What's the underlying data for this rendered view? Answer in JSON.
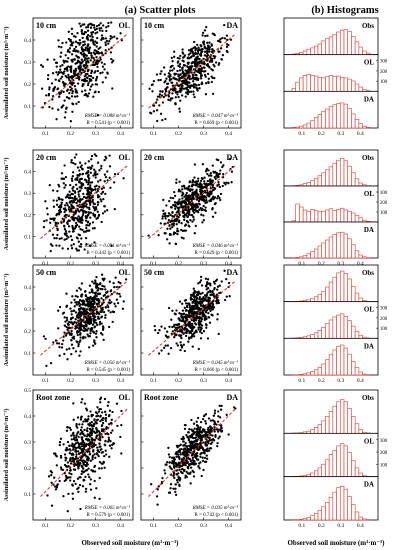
{
  "chart_data": {
    "type": "scatter",
    "sections": {
      "scatter_title": "(a) Scatter plots",
      "hist_title": "(b) Histograms"
    },
    "xlabel": "Observed soil moisture (m³·m⁻³)",
    "ylabel": "Assimilated soil moisture (m³·m⁻³)",
    "x_ticks": [
      "0.1",
      "0.2",
      "0.3",
      "0.4"
    ],
    "xlim": [
      0.05,
      0.45
    ],
    "ylim": [
      0.0,
      0.5
    ],
    "scatter_y_ticks": [
      "0.1",
      "0.2",
      "0.3",
      "0.4"
    ],
    "scatter_y_ticks_bottom": [
      "0.1",
      "0.2",
      "0.3",
      "0.4",
      "0.5"
    ],
    "hist_y_ticks": [
      "100",
      "200",
      "300"
    ],
    "hist_x_ticks": [
      "0.1",
      "0.2",
      "0.3",
      "0.4"
    ],
    "hist_labels": [
      "Obs",
      "OL",
      "DA"
    ],
    "colors": {
      "points": "#000000",
      "fit_line": "#e0362c",
      "bars": "#e0362c"
    },
    "rows": [
      {
        "depth": "10 cm",
        "panels": [
          {
            "model": "OL",
            "rmse": "RMSE = 0.088 m³·m⁻³",
            "r": "R = 0.541 (p < 0.001)",
            "center": [
              0.25,
              0.3
            ],
            "spread": [
              0.065,
              0.1
            ],
            "slope": 0.9
          },
          {
            "model": "DA",
            "rmse": "RMSE = 0.047 m³·m⁻³",
            "r": "R = 0.669 (p < 0.001)",
            "center": [
              0.25,
              0.26
            ],
            "spread": [
              0.065,
              0.06
            ],
            "slope": 1.0
          }
        ],
        "hist": {
          "Obs": [
            2,
            4,
            8,
            12,
            18,
            22,
            28,
            35,
            45,
            52,
            58,
            66,
            74,
            80,
            82,
            76,
            60,
            42,
            25,
            12,
            5
          ],
          "OL": [
            10,
            30,
            44,
            52,
            56,
            52,
            50,
            46,
            44,
            48,
            52,
            48,
            50,
            46,
            44,
            40,
            34,
            24,
            14,
            6,
            2
          ],
          "DA": [
            2,
            3,
            6,
            10,
            16,
            24,
            34,
            44,
            54,
            62,
            70,
            76,
            80,
            82,
            78,
            64,
            46,
            28,
            14,
            6,
            2
          ]
        }
      },
      {
        "depth": "20 cm",
        "panels": [
          {
            "model": "OL",
            "rmse": "RMSE = 0.091 m³·m⁻³",
            "r": "R = 0.442 (p < 0.001)",
            "center": [
              0.24,
              0.26
            ],
            "spread": [
              0.06,
              0.1
            ],
            "slope": 0.8
          },
          {
            "model": "DA",
            "rmse": "RMSE = 0.046 m³·m⁻³",
            "r": "R = 0.629 (p < 0.001)",
            "center": [
              0.26,
              0.27
            ],
            "spread": [
              0.06,
              0.055
            ],
            "slope": 1.0
          }
        ],
        "hist": {
          "Obs": [
            1,
            2,
            4,
            8,
            12,
            18,
            26,
            34,
            44,
            54,
            64,
            76,
            86,
            92,
            84,
            66,
            44,
            24,
            10,
            4,
            1
          ],
          "OL": [
            4,
            60,
            50,
            40,
            36,
            42,
            38,
            34,
            36,
            40,
            44,
            38,
            42,
            46,
            40,
            36,
            30,
            22,
            14,
            6,
            2
          ],
          "DA": [
            1,
            2,
            4,
            8,
            14,
            22,
            30,
            40,
            50,
            60,
            70,
            78,
            84,
            86,
            80,
            64,
            44,
            24,
            10,
            4,
            1
          ]
        }
      },
      {
        "depth": "50 cm",
        "panels": [
          {
            "model": "OL",
            "rmse": "RMSE = 0.056 m³·m⁻³",
            "r": "R = 0.545 (p < 0.001)",
            "center": [
              0.27,
              0.28
            ],
            "spread": [
              0.055,
              0.065
            ],
            "slope": 0.9
          },
          {
            "model": "DA",
            "rmse": "RMSE = 0.045 m³·m⁻³",
            "r": "R = 0.666 (p < 0.001)",
            "center": [
              0.27,
              0.28
            ],
            "spread": [
              0.055,
              0.05
            ],
            "slope": 1.0
          }
        ],
        "hist": {
          "Obs": [
            1,
            1,
            2,
            4,
            6,
            10,
            16,
            24,
            34,
            48,
            64,
            80,
            94,
            100,
            92,
            74,
            50,
            28,
            12,
            4,
            1
          ],
          "OL": [
            1,
            2,
            3,
            5,
            8,
            12,
            18,
            26,
            36,
            48,
            60,
            70,
            76,
            80,
            72,
            58,
            40,
            22,
            10,
            4,
            1
          ],
          "DA": [
            1,
            1,
            2,
            4,
            7,
            11,
            17,
            25,
            36,
            50,
            66,
            82,
            94,
            98,
            88,
            68,
            44,
            24,
            10,
            3,
            1
          ]
        }
      },
      {
        "depth": "Root zone",
        "panels": [
          {
            "model": "OL",
            "rmse": "RMSE = 0.065 m³·m⁻³",
            "r": "R = 0.579 (p < 0.001)",
            "center": [
              0.26,
              0.28
            ],
            "spread": [
              0.055,
              0.07
            ],
            "slope": 1.0
          },
          {
            "model": "DA",
            "rmse": "RMSE = 0.035 m³·m⁻³",
            "r": "R = 0.742 (p < 0.001)",
            "center": [
              0.26,
              0.27
            ],
            "spread": [
              0.055,
              0.045
            ],
            "slope": 1.0
          }
        ],
        "hist": {
          "Obs": [
            1,
            1,
            2,
            4,
            6,
            10,
            16,
            24,
            34,
            46,
            60,
            74,
            86,
            92,
            86,
            68,
            46,
            26,
            10,
            3,
            1
          ],
          "OL": [
            1,
            1,
            2,
            3,
            6,
            10,
            16,
            24,
            34,
            46,
            60,
            72,
            84,
            90,
            84,
            66,
            44,
            24,
            10,
            3,
            1
          ],
          "DA": [
            1,
            1,
            2,
            4,
            7,
            12,
            18,
            26,
            36,
            48,
            62,
            76,
            88,
            92,
            84,
            64,
            42,
            22,
            8,
            3,
            1
          ]
        }
      }
    ]
  }
}
